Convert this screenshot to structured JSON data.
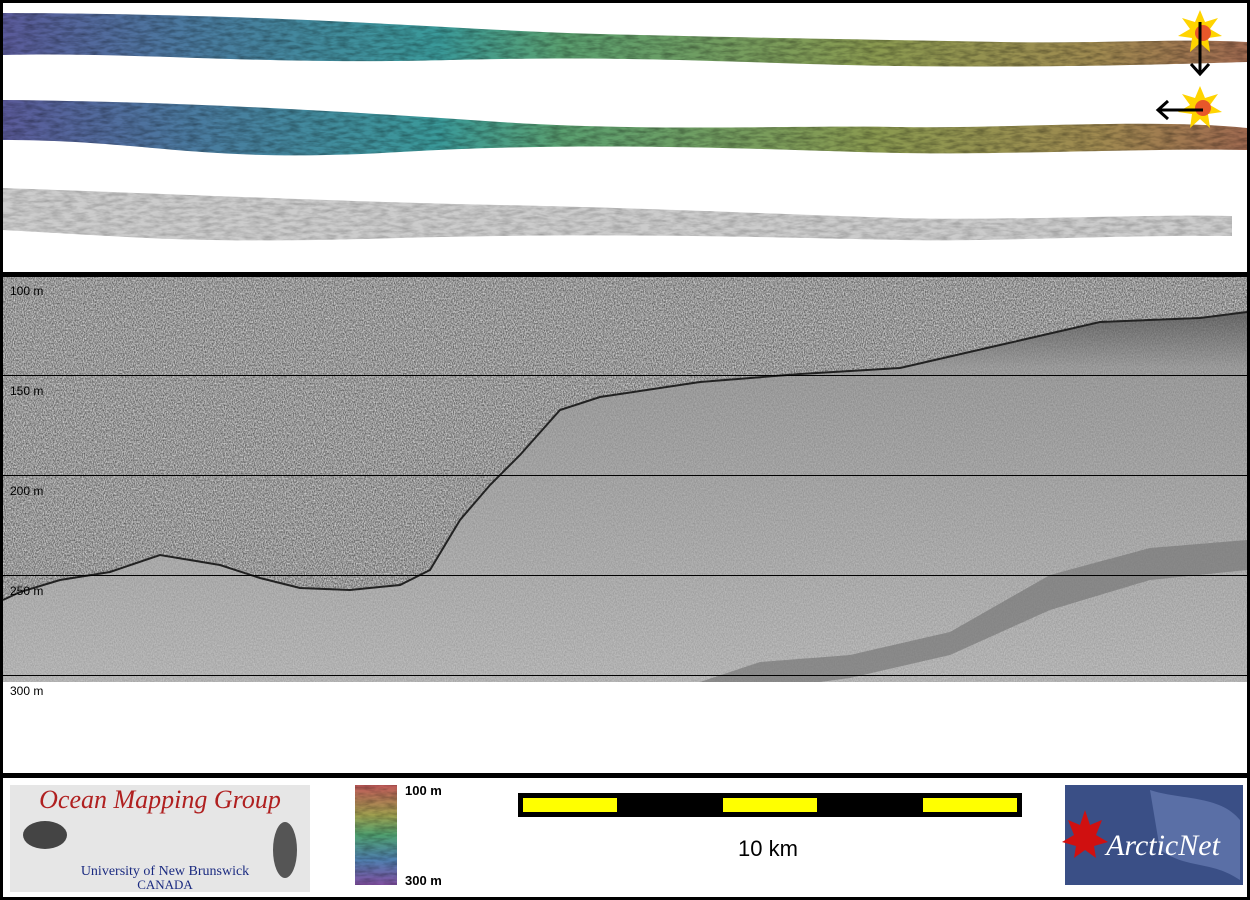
{
  "profile": {
    "depth_labels": [
      "100 m",
      "150 m",
      "200 m",
      "250 m",
      "300 m"
    ]
  },
  "footer": {
    "logo": {
      "title": "Ocean Mapping Group",
      "university": "University of New Brunswick",
      "country": "CANADA"
    },
    "colorbar": {
      "top_label": "100 m",
      "bottom_label": "300 m"
    },
    "scale_bar": {
      "label": "10 km"
    },
    "partner_logo": {
      "name": "ArcticNet"
    }
  }
}
